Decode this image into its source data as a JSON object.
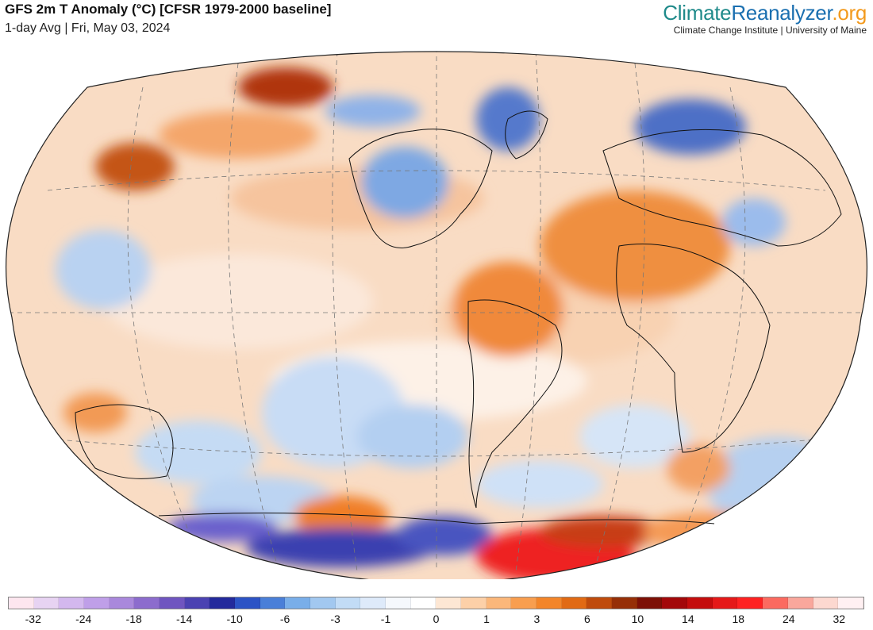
{
  "header": {
    "title": "GFS 2m T Anomaly (°C) [CFSR 1979-2000 baseline]",
    "subtitle": "1-day Avg | Fri, May 03, 2024"
  },
  "brand": {
    "logo_part1": "Climate",
    "logo_part2": "Reanalyzer",
    "logo_part3": ".org",
    "tagline": "Climate Change Institute | University of Maine"
  },
  "map": {
    "projection": "Winkel Tripel",
    "ocean_base_color": "#f6cdb0",
    "land_outline_color": "#111111",
    "graticule_color": "#777777"
  },
  "colorbar": {
    "colors": [
      "#fde6ef",
      "#e7d3f2",
      "#d3b8ee",
      "#bf9fe8",
      "#a988dc",
      "#8c6ccd",
      "#6f55c0",
      "#4b42b2",
      "#232a9c",
      "#2c53c5",
      "#4a7fd8",
      "#79aee9",
      "#a2c8f0",
      "#c2dcf6",
      "#deeafa",
      "#f5f8fc",
      "#ffffff",
      "#fde7d4",
      "#fcd0a8",
      "#fbb77a",
      "#f89e4f",
      "#f3852a",
      "#e16a14",
      "#bf4b0c",
      "#962f07",
      "#7d1006",
      "#a3080a",
      "#c40d0d",
      "#e51919",
      "#fe2222",
      "#fb6a60",
      "#f9a79c",
      "#fcd8d0",
      "#fff0f2"
    ],
    "tick_labels": [
      "-32",
      "-24",
      "-18",
      "-14",
      "-10",
      "-6",
      "-3",
      "-1",
      "0",
      "1",
      "3",
      "6",
      "10",
      "14",
      "18",
      "24",
      "32"
    ]
  }
}
